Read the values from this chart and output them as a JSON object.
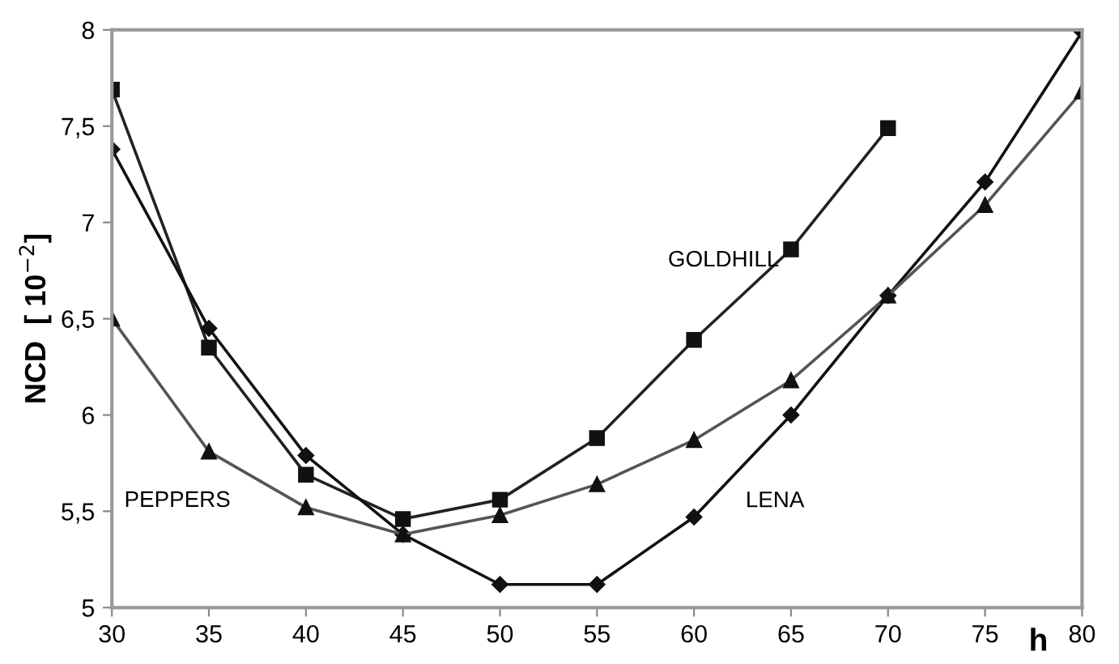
{
  "chart_data": {
    "type": "line",
    "xlabel": "h",
    "ylabel": "NCD  [ 10$^{−2}$]",
    "x": [
      30,
      35,
      40,
      45,
      50,
      55,
      60,
      65,
      70,
      75,
      80
    ],
    "series": [
      {
        "name": "GOLDHILL",
        "color": "#222222",
        "marker": "square",
        "values": [
          7.69,
          6.35,
          5.69,
          5.46,
          5.56,
          5.88,
          6.39,
          6.86,
          7.49,
          null,
          null
        ]
      },
      {
        "name": "LENA",
        "color": "#111111",
        "marker": "diamond",
        "values": [
          7.38,
          6.45,
          5.79,
          5.38,
          5.12,
          5.12,
          5.47,
          6.0,
          6.62,
          7.21,
          7.99
        ]
      },
      {
        "name": "PEPPERS",
        "color": "#555555",
        "marker": "triangle",
        "values": [
          6.5,
          5.81,
          5.52,
          5.38,
          5.48,
          5.64,
          5.87,
          6.18,
          6.62,
          7.09,
          7.68
        ]
      }
    ],
    "xlim": [
      30,
      80
    ],
    "xticks": [
      30,
      35,
      40,
      45,
      50,
      55,
      60,
      65,
      70,
      75,
      80
    ],
    "ylim": [
      5,
      8
    ],
    "yticks": [
      5,
      {
        "value": 5.5,
        "label": "5,5"
      },
      6,
      {
        "value": 6.5,
        "label": "6,5"
      },
      7,
      {
        "value": 7.5,
        "label": "7,5"
      },
      8
    ],
    "grid": false,
    "legend": false,
    "line_style": "solid"
  }
}
